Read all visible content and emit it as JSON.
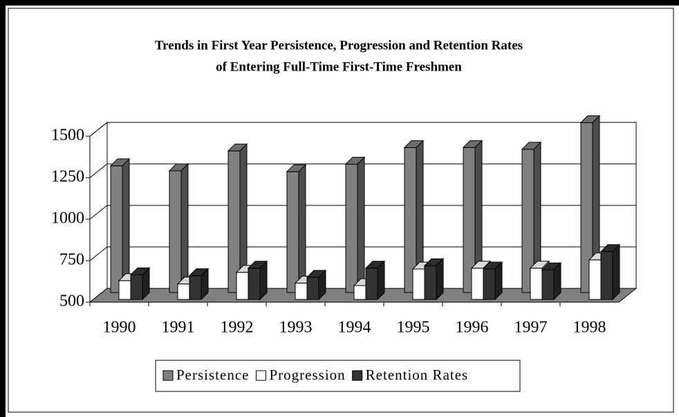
{
  "chart_data": {
    "type": "bar3d",
    "title": [
      "Trends in First Year Persistence, Progression and Retention Rates",
      "of Entering Full-Time First-Time Freshmen"
    ],
    "categories": [
      "1990",
      "1991",
      "1992",
      "1993",
      "1994",
      "1995",
      "1996",
      "1997",
      "1998"
    ],
    "series": [
      {
        "name": "Persistence",
        "color": "#808080",
        "values": [
          1280,
          1250,
          1370,
          1245,
          1290,
          1390,
          1390,
          1380,
          1540
        ]
      },
      {
        "name": "Progression",
        "color": "#ffffff",
        "values": [
          630,
          610,
          680,
          615,
          600,
          700,
          705,
          705,
          755
        ]
      },
      {
        "name": "Retention Rates",
        "color": "#333333",
        "values": [
          665,
          660,
          705,
          650,
          705,
          720,
          700,
          695,
          805
        ]
      }
    ],
    "ylim": [
      500,
      1500
    ],
    "yticks": [
      500,
      750,
      1000,
      1250,
      1500
    ],
    "grid": true
  }
}
